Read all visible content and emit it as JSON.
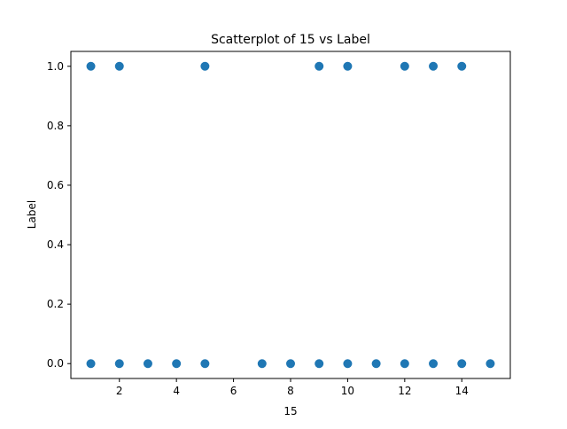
{
  "chart_data": {
    "type": "scatter",
    "title": "Scatterplot of 15 vs Label",
    "xlabel": "15",
    "ylabel": "Label",
    "xlim": [
      0.3,
      15.7
    ],
    "ylim": [
      -0.05,
      1.05
    ],
    "xticks": [
      2,
      4,
      6,
      8,
      10,
      12,
      14
    ],
    "yticks": [
      0.0,
      0.2,
      0.4,
      0.6,
      0.8,
      1.0
    ],
    "ytick_labels": [
      "0.0",
      "0.2",
      "0.4",
      "0.6",
      "0.8",
      "1.0"
    ],
    "grid": false,
    "marker_color": "#1f77b4",
    "points": [
      {
        "x": 1,
        "y": 1
      },
      {
        "x": 2,
        "y": 1
      },
      {
        "x": 5,
        "y": 1
      },
      {
        "x": 9,
        "y": 1
      },
      {
        "x": 10,
        "y": 1
      },
      {
        "x": 12,
        "y": 1
      },
      {
        "x": 13,
        "y": 1
      },
      {
        "x": 14,
        "y": 1
      },
      {
        "x": 1,
        "y": 0
      },
      {
        "x": 2,
        "y": 0
      },
      {
        "x": 3,
        "y": 0
      },
      {
        "x": 4,
        "y": 0
      },
      {
        "x": 5,
        "y": 0
      },
      {
        "x": 7,
        "y": 0
      },
      {
        "x": 8,
        "y": 0
      },
      {
        "x": 9,
        "y": 0
      },
      {
        "x": 10,
        "y": 0
      },
      {
        "x": 11,
        "y": 0
      },
      {
        "x": 12,
        "y": 0
      },
      {
        "x": 13,
        "y": 0
      },
      {
        "x": 14,
        "y": 0
      },
      {
        "x": 15,
        "y": 0
      }
    ]
  }
}
